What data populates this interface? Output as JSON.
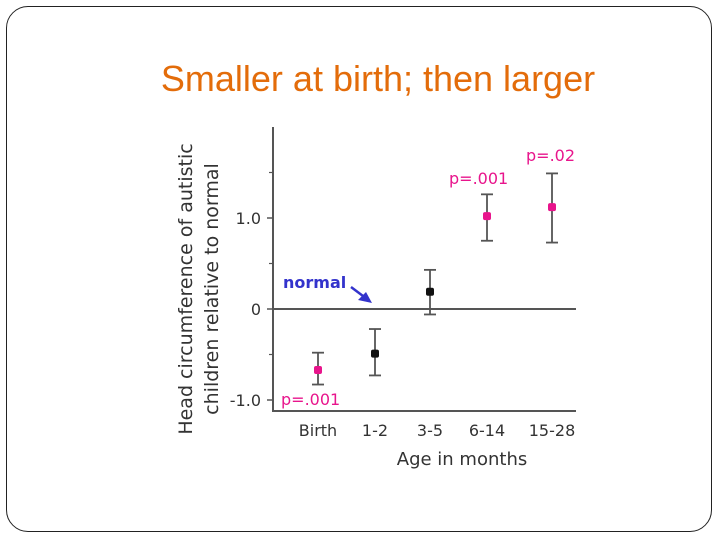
{
  "slide": {
    "title": "Smaller at birth; then larger"
  },
  "chart_data": {
    "type": "scatter",
    "ylabel_line1": "Head circumference of autistic",
    "ylabel_line2": "children relative to normal",
    "xlabel": "Age in months",
    "categories": [
      "Birth",
      "1-2",
      "3-5",
      "6-14",
      "15-28"
    ],
    "ylim": [
      -1.1,
      1.95
    ],
    "yticks": [
      {
        "value": 1.0,
        "label": "1.0"
      },
      {
        "value": 0,
        "label": "0"
      },
      {
        "value": -1.0,
        "label": "-1.0"
      }
    ],
    "grid": false,
    "points": [
      {
        "category": "Birth",
        "value": -0.67,
        "err_low": -0.83,
        "err_high": -0.48,
        "significant": true
      },
      {
        "category": "1-2",
        "value": -0.49,
        "err_low": -0.73,
        "err_high": -0.22,
        "significant": false
      },
      {
        "category": "3-5",
        "value": 0.19,
        "err_low": -0.06,
        "err_high": 0.43,
        "significant": false
      },
      {
        "category": "6-14",
        "value": 1.02,
        "err_low": 0.75,
        "err_high": 1.26,
        "significant": true
      },
      {
        "category": "15-28",
        "value": 1.12,
        "err_low": 0.73,
        "err_high": 1.49,
        "significant": true
      }
    ],
    "reference_line": {
      "value": 0,
      "label": "normal"
    },
    "annotations": [
      {
        "text": "p=.001",
        "category": "Birth"
      },
      {
        "text": "p=.001",
        "category": "6-14"
      },
      {
        "text": "p=.02",
        "category": "15-28"
      }
    ],
    "colors": {
      "significant": "#e8158c",
      "normal": "#111111",
      "annotation": "#e8158c",
      "arrow": "#3333cc",
      "axis": "#555555"
    }
  }
}
